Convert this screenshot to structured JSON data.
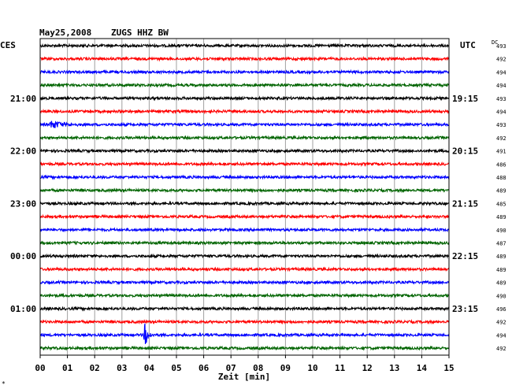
{
  "header": {
    "date": "May25,2008",
    "station": "ZUGS HHZ BW"
  },
  "labels": {
    "left_tz": "CES",
    "right_tz": "UTC",
    "dc_header": "DC",
    "xlabel": "Zeit [min]",
    "corner_mark": "*"
  },
  "colors": {
    "trace_cycle": [
      "#000000",
      "#ff0000",
      "#0000ff",
      "#006400"
    ],
    "grid": "#a0a0a0"
  },
  "chart_data": {
    "type": "line",
    "title": "May25,2008 ZUGS HHZ BW",
    "xlabel": "Zeit [min]",
    "xlim": [
      0,
      15
    ],
    "x_ticks": [
      "00",
      "01",
      "02",
      "03",
      "04",
      "05",
      "06",
      "07",
      "08",
      "09",
      "10",
      "11",
      "12",
      "13",
      "14",
      "15"
    ],
    "rows_per_hour": 4,
    "row_minutes": 15,
    "left_time_labels": [
      {
        "row": 4,
        "label": "21:00"
      },
      {
        "row": 8,
        "label": "22:00"
      },
      {
        "row": 12,
        "label": "23:00"
      },
      {
        "row": 16,
        "label": "00:00"
      },
      {
        "row": 20,
        "label": "01:00"
      }
    ],
    "right_time_labels": [
      {
        "row": 4,
        "label": "19:15"
      },
      {
        "row": 8,
        "label": "20:15"
      },
      {
        "row": 12,
        "label": "21:15"
      },
      {
        "row": 16,
        "label": "22:15"
      },
      {
        "row": 20,
        "label": "23:15"
      }
    ],
    "dc_offsets": [
      "493",
      "492",
      "494",
      "494",
      "493",
      "494",
      "493",
      "492",
      "491",
      "486",
      "488",
      "489",
      "485",
      "489",
      "490",
      "487",
      "489",
      "489",
      "489",
      "490",
      "496",
      "492",
      "494",
      "492"
    ],
    "events": [
      {
        "row": 6,
        "minute": 0.4,
        "amplitude": "moderate"
      },
      {
        "row": 22,
        "minute": 3.85,
        "amplitude": "large"
      }
    ]
  }
}
